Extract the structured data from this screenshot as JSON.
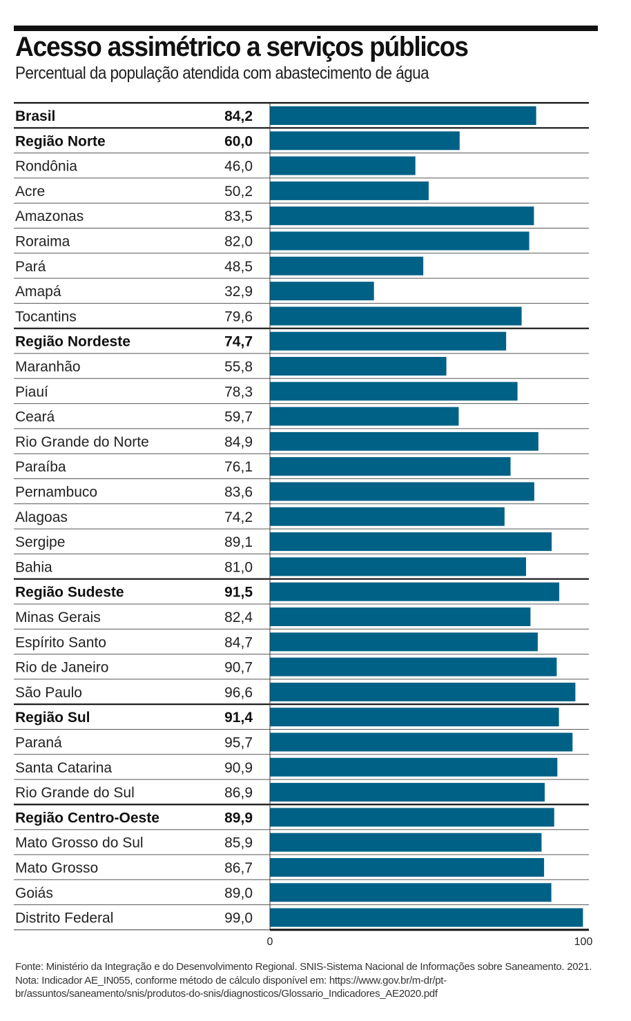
{
  "header": {
    "title": "Acesso assimétrico a serviços públicos",
    "subtitle": "Percentual da população atendida com abastecimento de água"
  },
  "colors": {
    "bar": "#006186",
    "rule": "#111111",
    "thin_rule": "#555555"
  },
  "footnote": "Fonte: Ministério da Integração e do Desenvolvimento Regional. SNIS-Sistema Nacional de Informações sobre Saneamento. 2021. Nota: Indicador AE_IN055, conforme método de cálculo disponível em:  https://www.gov.br/m-dr/pt-br/assuntos/saneamento/snis/produtos-do-snis/diagnosticos/Glossario_Indicadores_AE2020.pdf",
  "chart_data": {
    "type": "bar",
    "orientation": "horizontal",
    "title": "Acesso assimétrico a serviços públicos",
    "subtitle": "Percentual da população atendida com abastecimento de água",
    "xlabel": "",
    "ylabel": "",
    "xlim": [
      0,
      100
    ],
    "x_ticks": [
      "0",
      "100"
    ],
    "grid": false,
    "categories": [
      "Brasil",
      "Região Norte",
      "Rondônia",
      "Acre",
      "Amazonas",
      "Roraima",
      "Pará",
      "Amapá",
      "Tocantins",
      "Região Nordeste",
      "Maranhão",
      "Piauí",
      "Ceará",
      "Rio Grande do Norte",
      "Paraíba",
      "Pernambuco",
      "Alagoas",
      "Sergipe",
      "Bahia",
      "Região Sudeste",
      "Minas Gerais",
      "Espírito Santo",
      "Rio de Janeiro",
      "São Paulo",
      "Região Sul",
      "Paraná",
      "Santa Catarina",
      "Rio Grande do Sul",
      "Região Centro-Oeste",
      "Mato Grosso do Sul",
      "Mato Grosso",
      "Goiás",
      "Distrito Federal"
    ],
    "values": [
      84.2,
      60.0,
      46.0,
      50.2,
      83.5,
      82.0,
      48.5,
      32.9,
      79.6,
      74.7,
      55.8,
      78.3,
      59.7,
      84.9,
      76.1,
      83.6,
      74.2,
      89.1,
      81.0,
      91.5,
      82.4,
      84.7,
      90.7,
      96.6,
      91.4,
      95.7,
      90.9,
      86.9,
      89.9,
      85.9,
      86.7,
      89.0,
      99.0
    ],
    "value_labels": [
      "84,2",
      "60,0",
      "46,0",
      "50,2",
      "83,5",
      "82,0",
      "48,5",
      "32,9",
      "79,6",
      "74,7",
      "55,8",
      "78,3",
      "59,7",
      "84,9",
      "76,1",
      "83,6",
      "74,2",
      "89,1",
      "81,0",
      "91,5",
      "82,4",
      "84,7",
      "90,7",
      "96,6",
      "91,4",
      "95,7",
      "90,9",
      "86,9",
      "89,9",
      "85,9",
      "86,7",
      "89,0",
      "99,0"
    ],
    "bold_rows": [
      "Brasil",
      "Região Norte",
      "Região Nordeste",
      "Região Sudeste",
      "Região Sul",
      "Região Centro-Oeste"
    ],
    "legend": null
  }
}
